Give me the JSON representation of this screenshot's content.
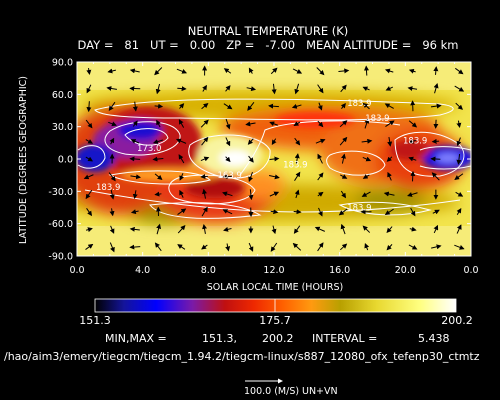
{
  "chart_data": {
    "type": "heatmap",
    "title": "NEUTRAL TEMPERATURE (K)",
    "subtitle": "DAY =   81   UT =   0.00   ZP =   -7.00   MEAN ALTITUDE =   96 km",
    "xlabel": "SOLAR LOCAL TIME (HOURS)",
    "ylabel": "LATITUDE (DEGREES GEOGRAPHIC)",
    "x_ticks": [
      "0.0",
      "4.0",
      "8.0",
      "12.0",
      "16.0",
      "20.0",
      "0.0"
    ],
    "x_tick_values": [
      0,
      4,
      8,
      12,
      16,
      20,
      24
    ],
    "y_ticks": [
      "90.0",
      "60.0",
      "30.0",
      "0.0",
      "-30.0",
      "-60.0",
      "-90.0"
    ],
    "y_tick_values": [
      90,
      60,
      30,
      0,
      -30,
      -60,
      -90
    ],
    "xlim": [
      0,
      24
    ],
    "ylim": [
      -90,
      90
    ],
    "zlim": [
      151.3,
      200.2
    ],
    "contour_interval": 5.438,
    "contour_labels": [
      {
        "text": "183.9",
        "x": 17.2,
        "y": 52
      },
      {
        "text": "183.9",
        "x": 18.3,
        "y": 38
      },
      {
        "text": "173.0",
        "x": 4.4,
        "y": 10
      },
      {
        "text": "163.9",
        "x": 9.3,
        "y": -15
      },
      {
        "text": "183.9",
        "x": 13.3,
        "y": -5
      },
      {
        "text": "183.9",
        "x": 20.6,
        "y": 17
      },
      {
        "text": "183.9",
        "x": 1.9,
        "y": -26
      },
      {
        "text": "183.9",
        "x": 17.2,
        "y": -45
      }
    ],
    "features": [
      {
        "x": 3.9,
        "y": 22,
        "value": 151.3
      },
      {
        "x": 1.2,
        "y": 0,
        "value": 160
      },
      {
        "x": 22.8,
        "y": 0,
        "value": 156
      },
      {
        "x": 9.0,
        "y": 5,
        "value": 200.2
      },
      {
        "x": 7.8,
        "y": -32,
        "value": 175
      },
      {
        "x": 14.4,
        "y": 0,
        "value": 188
      },
      {
        "x": 17.3,
        "y": 14,
        "value": 178
      },
      {
        "x": 20.4,
        "y": 12,
        "value": 176
      },
      {
        "x": 11.5,
        "y": -30,
        "value": 180
      },
      {
        "x": 5.0,
        "y": -35,
        "value": 185
      },
      {
        "x": 13.5,
        "y": 32,
        "value": 186
      },
      {
        "x": 12,
        "y": 70,
        "value": 196
      },
      {
        "x": 12,
        "y": -70,
        "value": 196
      }
    ],
    "colorbar": {
      "min_label": "151.3",
      "mid_label": "175.7",
      "max_label": "200.2"
    },
    "vector_reference": {
      "label": "100.0 (M/S)",
      "fields": "UN+VN"
    }
  },
  "stats": {
    "min_max_label": "MIN,MAX =",
    "min": "151.3,",
    "max": "200.2",
    "interval_label": "INTERVAL =",
    "interval": "5.438"
  },
  "file_path": "/hao/aim3/emery/tiegcm/tiegcm_1.94.2/tiegcm-linux/s887_12080_ofx_tefenp30_ctmtz"
}
